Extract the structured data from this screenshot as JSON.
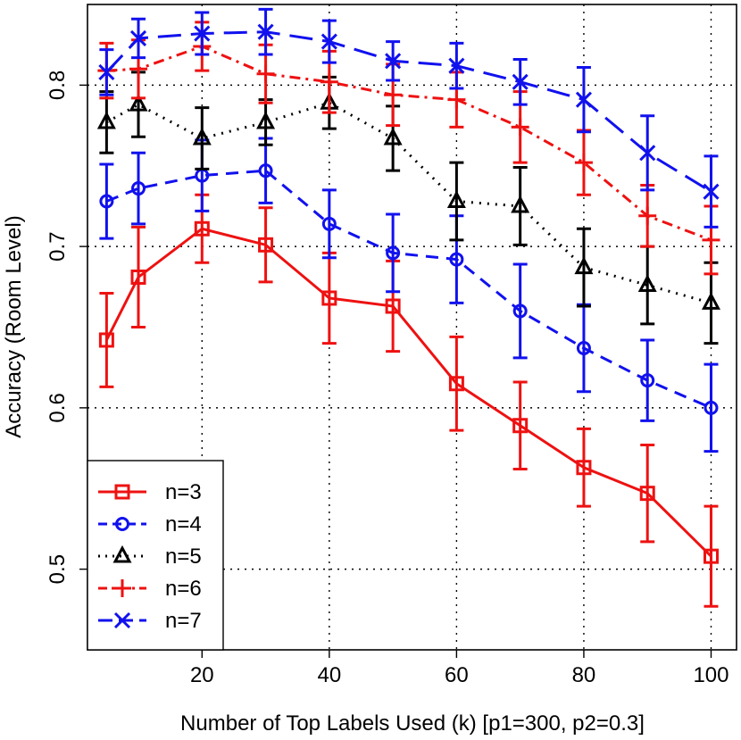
{
  "chart_data": {
    "type": "line",
    "title": "",
    "xlabel": "Number of Top Labels Used (k) [p1=300, p2=0.3]",
    "ylabel": "Accuracy (Room Level)",
    "xlim": [
      2,
      104
    ],
    "ylim": [
      0.45,
      0.85
    ],
    "xticks": [
      20,
      40,
      60,
      80,
      100
    ],
    "yticks": [
      0.5,
      0.6,
      0.7,
      0.8
    ],
    "xtick_labels": [
      "20",
      "40",
      "60",
      "80",
      "100"
    ],
    "ytick_labels": [
      "0.5",
      "0.6",
      "0.7",
      "0.8"
    ],
    "grid": true,
    "legend_position": "bottom-left",
    "x": [
      5,
      10,
      20,
      30,
      40,
      50,
      60,
      70,
      80,
      90,
      100
    ],
    "series": [
      {
        "name": "n=3",
        "color": "#ee1111",
        "line": "solid",
        "marker": "square",
        "values": [
          0.642,
          0.681,
          0.711,
          0.701,
          0.668,
          0.663,
          0.615,
          0.589,
          0.563,
          0.547,
          0.508
        ],
        "err": [
          0.029,
          0.031,
          0.021,
          0.023,
          0.028,
          0.028,
          0.029,
          0.027,
          0.024,
          0.03,
          0.031
        ]
      },
      {
        "name": "n=4",
        "color": "#1111ee",
        "line": "dashed",
        "marker": "circle",
        "values": [
          0.728,
          0.736,
          0.744,
          0.747,
          0.714,
          0.696,
          0.692,
          0.66,
          0.637,
          0.617,
          0.6
        ],
        "err": [
          0.023,
          0.022,
          0.022,
          0.02,
          0.021,
          0.024,
          0.027,
          0.029,
          0.027,
          0.025,
          0.027
        ]
      },
      {
        "name": "n=5",
        "color": "#000000",
        "line": "dotted",
        "marker": "triangle",
        "values": [
          0.777,
          0.788,
          0.767,
          0.777,
          0.789,
          0.767,
          0.728,
          0.725,
          0.687,
          0.676,
          0.665
        ],
        "err": [
          0.019,
          0.02,
          0.019,
          0.014,
          0.016,
          0.02,
          0.024,
          0.024,
          0.024,
          0.024,
          0.025
        ]
      },
      {
        "name": "n=6",
        "color": "#ee1111",
        "line": "dashdot",
        "marker": "plus",
        "values": [
          0.809,
          0.81,
          0.824,
          0.807,
          0.802,
          0.794,
          0.791,
          0.774,
          0.752,
          0.719,
          0.704
        ],
        "err": [
          0.017,
          0.018,
          0.015,
          0.018,
          0.019,
          0.019,
          0.017,
          0.022,
          0.02,
          0.019,
          0.021
        ]
      },
      {
        "name": "n=7",
        "color": "#1111ee",
        "line": "longdash",
        "marker": "x",
        "values": [
          0.808,
          0.829,
          0.832,
          0.833,
          0.827,
          0.815,
          0.812,
          0.802,
          0.791,
          0.758,
          0.734
        ],
        "err": [
          0.014,
          0.012,
          0.013,
          0.014,
          0.013,
          0.012,
          0.014,
          0.014,
          0.02,
          0.023,
          0.022
        ]
      }
    ]
  }
}
